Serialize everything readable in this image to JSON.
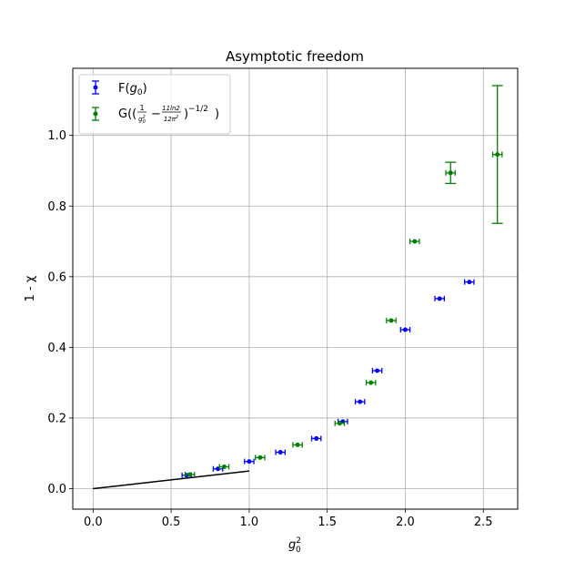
{
  "chart_data": {
    "type": "scatter",
    "title": "Asymptotic freedom",
    "xlabel": "g₀²",
    "ylabel": "1 - χ",
    "xlim": [
      -0.13,
      2.72
    ],
    "ylim": [
      -0.058,
      1.19
    ],
    "xticks": [
      0.0,
      0.5,
      1.0,
      1.5,
      2.0,
      2.5
    ],
    "xtick_labels": [
      "0.0",
      "0.5",
      "1.0",
      "1.5",
      "2.0",
      "2.5"
    ],
    "yticks": [
      0.0,
      0.2,
      0.4,
      0.6,
      0.8,
      1.0
    ],
    "ytick_labels": [
      "0.0",
      "0.2",
      "0.4",
      "0.6",
      "0.8",
      "1.0"
    ],
    "grid": true,
    "legend_position": "top-left",
    "series": [
      {
        "name": "F(g0)",
        "legend": "F(g₀)",
        "color": "#0000ff",
        "points": [
          {
            "x": 0.6,
            "y": 0.038,
            "xerr": 0.03,
            "yerr": 0.002
          },
          {
            "x": 0.8,
            "y": 0.056,
            "xerr": 0.03,
            "yerr": 0.002
          },
          {
            "x": 1.0,
            "y": 0.077,
            "xerr": 0.03,
            "yerr": 0.002
          },
          {
            "x": 1.2,
            "y": 0.103,
            "xerr": 0.03,
            "yerr": 0.002
          },
          {
            "x": 1.43,
            "y": 0.142,
            "xerr": 0.03,
            "yerr": 0.002
          },
          {
            "x": 1.6,
            "y": 0.19,
            "xerr": 0.03,
            "yerr": 0.002
          },
          {
            "x": 1.71,
            "y": 0.246,
            "xerr": 0.03,
            "yerr": 0.002
          },
          {
            "x": 1.82,
            "y": 0.334,
            "xerr": 0.03,
            "yerr": 0.002
          },
          {
            "x": 2.0,
            "y": 0.45,
            "xerr": 0.03,
            "yerr": 0.002
          },
          {
            "x": 2.22,
            "y": 0.538,
            "xerr": 0.03,
            "yerr": 0.002
          },
          {
            "x": 2.41,
            "y": 0.585,
            "xerr": 0.03,
            "yerr": 0.002
          }
        ]
      },
      {
        "name": "G",
        "legend": "G((1/g₀² − 11ln2/12π²)^(−1/2))",
        "color": "#008000",
        "points": [
          {
            "x": 0.62,
            "y": 0.04,
            "xerr": 0.03,
            "yerr": 0.002
          },
          {
            "x": 0.84,
            "y": 0.062,
            "xerr": 0.03,
            "yerr": 0.002
          },
          {
            "x": 1.07,
            "y": 0.088,
            "xerr": 0.03,
            "yerr": 0.002
          },
          {
            "x": 1.31,
            "y": 0.124,
            "xerr": 0.03,
            "yerr": 0.002
          },
          {
            "x": 1.58,
            "y": 0.185,
            "xerr": 0.03,
            "yerr": 0.002
          },
          {
            "x": 1.78,
            "y": 0.3,
            "xerr": 0.03,
            "yerr": 0.004
          },
          {
            "x": 1.91,
            "y": 0.476,
            "xerr": 0.03,
            "yerr": 0.004
          },
          {
            "x": 2.06,
            "y": 0.7,
            "xerr": 0.03,
            "yerr": 0.004
          },
          {
            "x": 2.29,
            "y": 0.894,
            "xerr": 0.03,
            "yerr": 0.03
          },
          {
            "x": 2.59,
            "y": 0.946,
            "xerr": 0.03,
            "yerr": 0.195
          }
        ]
      }
    ],
    "reference_line": {
      "color": "#000000",
      "x": [
        0.0,
        1.0
      ],
      "y": [
        0.0,
        0.05
      ]
    }
  }
}
